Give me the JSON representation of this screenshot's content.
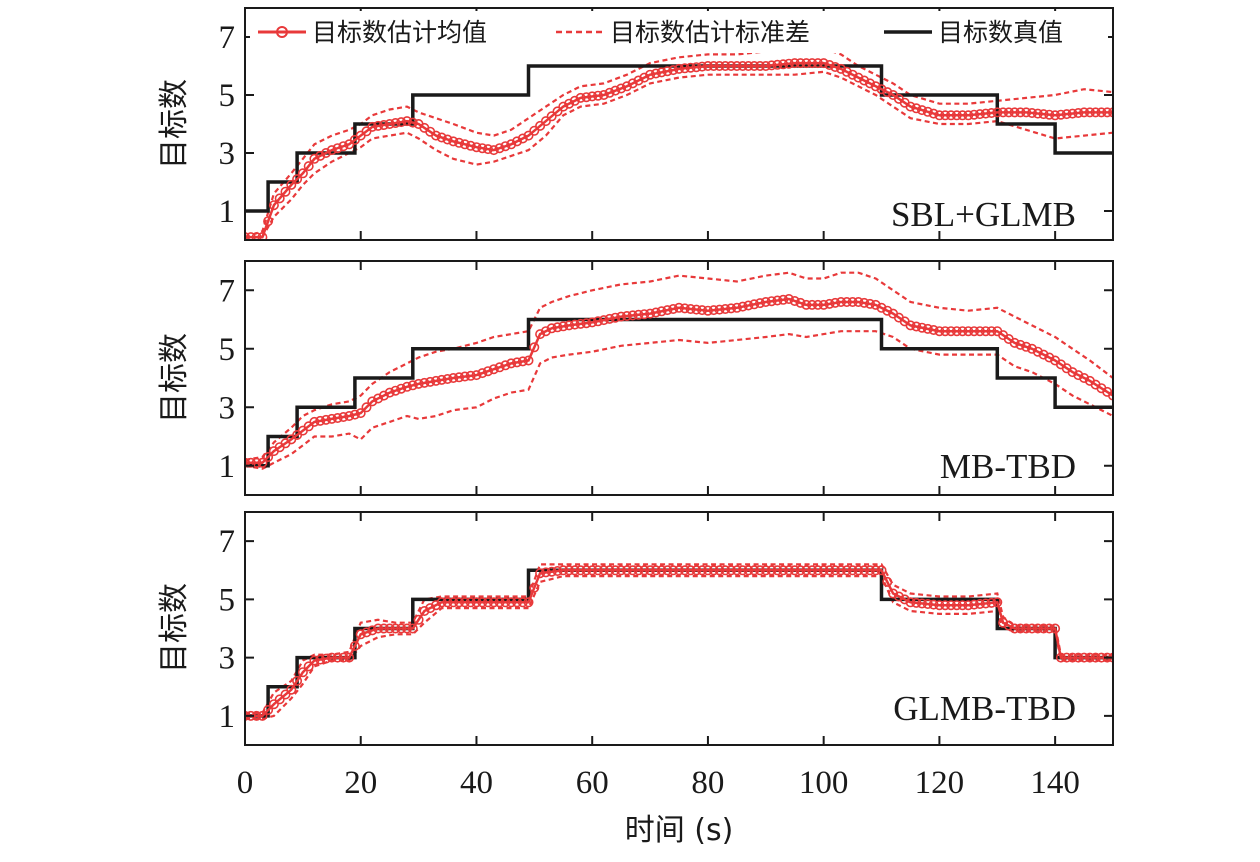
{
  "chart_data": {
    "type": "line",
    "xlabel": "时间 (s)",
    "ylabel": "目标数",
    "xlim": [
      0,
      150
    ],
    "ylim": [
      0,
      8
    ],
    "xticks": [
      0,
      20,
      40,
      60,
      80,
      100,
      120,
      140
    ],
    "yticks": [
      1,
      3,
      5,
      7
    ],
    "grid": false,
    "legend": {
      "placement": "top",
      "entries": [
        "目标数估计均值",
        "目标数估计标准差",
        "目标数真值"
      ]
    },
    "colors": {
      "estimate": "#e8393a",
      "truth": "#1a1a1a"
    },
    "panels": [
      {
        "label": "SBL+GLMB",
        "truth": {
          "x": [
            0,
            4,
            4,
            9,
            9,
            19,
            19,
            29,
            29,
            49,
            49,
            110,
            110,
            130,
            130,
            140,
            140,
            150
          ],
          "y": [
            1,
            1,
            2,
            2,
            3,
            3,
            4,
            4,
            5,
            5,
            6,
            6,
            5,
            5,
            4,
            4,
            3,
            3
          ]
        },
        "mean": {
          "x": [
            0,
            3,
            5,
            8,
            10,
            12,
            15,
            18,
            20,
            22,
            25,
            28,
            30,
            33,
            36,
            40,
            43,
            46,
            49,
            52,
            55,
            58,
            62,
            66,
            70,
            75,
            80,
            85,
            90,
            95,
            100,
            103,
            106,
            109,
            112,
            115,
            120,
            125,
            130,
            135,
            140,
            145,
            150
          ],
          "y": [
            0.1,
            0.1,
            1.2,
            1.9,
            2.3,
            2.8,
            3.1,
            3.3,
            3.6,
            3.9,
            4.0,
            4.1,
            4.0,
            3.6,
            3.4,
            3.2,
            3.1,
            3.3,
            3.6,
            4.1,
            4.6,
            4.9,
            5.0,
            5.3,
            5.7,
            5.9,
            6.0,
            6.0,
            6.0,
            6.1,
            6.1,
            5.9,
            5.6,
            5.3,
            5.0,
            4.6,
            4.3,
            4.3,
            4.4,
            4.4,
            4.3,
            4.4,
            4.4
          ]
        },
        "upper": {
          "x": [
            0,
            3,
            5,
            8,
            10,
            12,
            15,
            18,
            20,
            22,
            25,
            28,
            30,
            33,
            36,
            40,
            43,
            46,
            49,
            52,
            55,
            58,
            62,
            66,
            70,
            75,
            80,
            85,
            90,
            95,
            100,
            103,
            106,
            109,
            112,
            115,
            120,
            125,
            130,
            135,
            140,
            145,
            150
          ],
          "y": [
            0.1,
            0.3,
            1.6,
            2.3,
            2.8,
            3.3,
            3.6,
            3.8,
            4.0,
            4.3,
            4.5,
            4.6,
            4.4,
            4.2,
            4.0,
            3.7,
            3.6,
            3.8,
            4.2,
            4.6,
            5.0,
            5.3,
            5.4,
            5.7,
            6.1,
            6.3,
            6.4,
            6.4,
            6.5,
            6.5,
            6.6,
            6.4,
            6.0,
            5.7,
            5.4,
            5.0,
            4.7,
            4.7,
            4.8,
            4.9,
            5.0,
            5.2,
            5.1
          ]
        },
        "lower": {
          "x": [
            0,
            3,
            5,
            8,
            10,
            12,
            15,
            18,
            20,
            22,
            25,
            28,
            30,
            33,
            36,
            40,
            43,
            46,
            49,
            52,
            55,
            58,
            62,
            66,
            70,
            75,
            80,
            85,
            90,
            95,
            100,
            103,
            106,
            109,
            112,
            115,
            120,
            125,
            130,
            135,
            140,
            145,
            150
          ],
          "y": [
            0.1,
            0.1,
            0.8,
            1.4,
            1.9,
            2.3,
            2.7,
            3.0,
            3.2,
            3.5,
            3.6,
            3.7,
            3.5,
            3.1,
            2.8,
            2.6,
            2.7,
            2.9,
            3.1,
            3.6,
            4.3,
            4.6,
            4.7,
            5.0,
            5.4,
            5.6,
            5.7,
            5.7,
            5.7,
            5.7,
            5.8,
            5.6,
            5.3,
            5.0,
            4.6,
            4.2,
            4.0,
            4.0,
            4.1,
            3.8,
            3.5,
            3.6,
            3.7
          ]
        }
      },
      {
        "label": "MB-TBD",
        "truth": {
          "x": [
            0,
            4,
            4,
            9,
            9,
            19,
            19,
            29,
            29,
            49,
            49,
            110,
            110,
            130,
            130,
            140,
            140,
            150
          ],
          "y": [
            1,
            1,
            2,
            2,
            3,
            3,
            4,
            4,
            5,
            5,
            6,
            6,
            5,
            5,
            4,
            4,
            3,
            3
          ]
        },
        "mean": {
          "x": [
            0,
            3,
            5,
            8,
            10,
            12,
            15,
            18,
            20,
            22,
            25,
            28,
            30,
            33,
            36,
            40,
            43,
            46,
            49,
            51,
            53,
            56,
            60,
            65,
            70,
            75,
            80,
            85,
            90,
            94,
            97,
            100,
            103,
            106,
            109,
            112,
            115,
            120,
            125,
            130,
            133,
            136,
            140,
            143,
            146,
            150
          ],
          "y": [
            1.1,
            1.1,
            1.5,
            1.9,
            2.2,
            2.5,
            2.6,
            2.7,
            2.8,
            3.2,
            3.5,
            3.7,
            3.8,
            3.9,
            4.0,
            4.1,
            4.3,
            4.5,
            4.6,
            5.5,
            5.7,
            5.8,
            5.9,
            6.1,
            6.2,
            6.4,
            6.3,
            6.4,
            6.6,
            6.7,
            6.5,
            6.5,
            6.6,
            6.6,
            6.5,
            6.2,
            5.8,
            5.6,
            5.6,
            5.6,
            5.2,
            5.0,
            4.6,
            4.2,
            3.9,
            3.4
          ]
        },
        "upper": {
          "x": [
            0,
            3,
            5,
            8,
            10,
            12,
            15,
            18,
            20,
            22,
            25,
            28,
            30,
            33,
            36,
            40,
            43,
            46,
            49,
            51,
            53,
            56,
            60,
            65,
            70,
            75,
            80,
            85,
            90,
            94,
            97,
            100,
            103,
            106,
            109,
            112,
            115,
            120,
            125,
            130,
            133,
            136,
            140,
            143,
            146,
            150
          ],
          "y": [
            1.2,
            1.3,
            1.8,
            2.3,
            2.7,
            2.9,
            3.1,
            3.2,
            3.4,
            3.8,
            4.2,
            4.5,
            4.7,
            4.9,
            5.0,
            5.2,
            5.4,
            5.5,
            5.6,
            6.4,
            6.6,
            6.8,
            7.0,
            7.2,
            7.3,
            7.5,
            7.4,
            7.3,
            7.5,
            7.6,
            7.4,
            7.4,
            7.6,
            7.6,
            7.4,
            7.0,
            6.6,
            6.4,
            6.3,
            6.4,
            6.1,
            5.8,
            5.4,
            5.0,
            4.6,
            4.0
          ]
        },
        "lower": {
          "x": [
            0,
            3,
            5,
            8,
            10,
            12,
            15,
            18,
            20,
            22,
            25,
            28,
            30,
            33,
            36,
            40,
            43,
            46,
            49,
            51,
            53,
            56,
            60,
            65,
            70,
            75,
            80,
            85,
            90,
            94,
            97,
            100,
            103,
            106,
            109,
            112,
            115,
            120,
            125,
            130,
            133,
            136,
            140,
            143,
            146,
            150
          ],
          "y": [
            1.0,
            0.9,
            1.1,
            1.4,
            1.7,
            2.0,
            2.0,
            2.1,
            1.9,
            2.3,
            2.5,
            2.7,
            2.6,
            2.7,
            2.9,
            3.0,
            3.3,
            3.5,
            3.6,
            4.5,
            4.7,
            4.8,
            4.9,
            5.1,
            5.2,
            5.3,
            5.2,
            5.3,
            5.4,
            5.5,
            5.4,
            5.5,
            5.6,
            5.6,
            5.6,
            5.4,
            5.0,
            4.8,
            4.8,
            4.8,
            4.4,
            4.2,
            3.8,
            3.4,
            3.1,
            2.7
          ]
        }
      },
      {
        "label": "GLMB-TBD",
        "truth": {
          "x": [
            0,
            4,
            4,
            9,
            9,
            19,
            19,
            29,
            29,
            49,
            49,
            110,
            110,
            130,
            130,
            140,
            140,
            150
          ],
          "y": [
            1,
            1,
            2,
            2,
            3,
            3,
            4,
            4,
            5,
            5,
            6,
            6,
            5,
            5,
            4,
            4,
            3,
            3
          ]
        },
        "mean": {
          "x": [
            0,
            3,
            5,
            8,
            10,
            12,
            15,
            18,
            20,
            23,
            26,
            29,
            31,
            34,
            38,
            42,
            46,
            49,
            51,
            55,
            60,
            65,
            70,
            75,
            80,
            85,
            90,
            95,
            100,
            105,
            110,
            112,
            115,
            120,
            125,
            130,
            131,
            133,
            136,
            140,
            141,
            143,
            146,
            150
          ],
          "y": [
            1.0,
            1.0,
            1.4,
            1.9,
            2.5,
            2.9,
            3.0,
            3.0,
            3.8,
            4.0,
            4.0,
            4.0,
            4.6,
            4.9,
            4.9,
            4.9,
            4.9,
            4.9,
            5.9,
            6.0,
            6.0,
            6.0,
            6.0,
            6.0,
            6.0,
            6.0,
            6.0,
            6.0,
            6.0,
            6.0,
            6.0,
            5.2,
            4.9,
            4.8,
            4.8,
            4.9,
            4.2,
            4.0,
            4.0,
            4.0,
            3.0,
            3.0,
            3.0,
            3.0
          ]
        },
        "upper": {
          "x": [
            0,
            3,
            5,
            8,
            10,
            12,
            15,
            18,
            20,
            23,
            26,
            29,
            31,
            34,
            38,
            42,
            46,
            49,
            51,
            55,
            60,
            65,
            70,
            75,
            80,
            85,
            90,
            95,
            100,
            105,
            110,
            112,
            115,
            120,
            125,
            130,
            131,
            133,
            136,
            140,
            141,
            143,
            146,
            150
          ],
          "y": [
            1.1,
            1.1,
            1.8,
            2.2,
            2.9,
            3.1,
            3.1,
            3.2,
            4.2,
            4.3,
            4.2,
            4.2,
            5.0,
            5.1,
            5.1,
            5.1,
            5.1,
            5.1,
            6.2,
            6.2,
            6.2,
            6.2,
            6.2,
            6.2,
            6.2,
            6.2,
            6.2,
            6.2,
            6.2,
            6.2,
            6.2,
            5.5,
            5.2,
            5.1,
            5.1,
            5.2,
            4.4,
            4.1,
            4.1,
            4.1,
            3.1,
            3.1,
            3.1,
            3.1
          ]
        },
        "lower": {
          "x": [
            0,
            3,
            5,
            8,
            10,
            12,
            15,
            18,
            20,
            23,
            26,
            29,
            31,
            34,
            38,
            42,
            46,
            49,
            51,
            55,
            60,
            65,
            70,
            75,
            80,
            85,
            90,
            95,
            100,
            105,
            110,
            112,
            115,
            120,
            125,
            130,
            131,
            133,
            136,
            140,
            141,
            143,
            146,
            150
          ],
          "y": [
            0.9,
            0.9,
            1.0,
            1.6,
            2.1,
            2.7,
            2.9,
            2.9,
            3.4,
            3.7,
            3.8,
            3.8,
            4.2,
            4.7,
            4.7,
            4.7,
            4.7,
            4.7,
            5.6,
            5.8,
            5.8,
            5.8,
            5.8,
            5.8,
            5.8,
            5.8,
            5.8,
            5.8,
            5.8,
            5.8,
            5.8,
            4.9,
            4.6,
            4.5,
            4.5,
            4.6,
            4.0,
            3.9,
            3.9,
            3.9,
            2.9,
            2.9,
            2.9,
            2.9
          ]
        }
      }
    ]
  }
}
